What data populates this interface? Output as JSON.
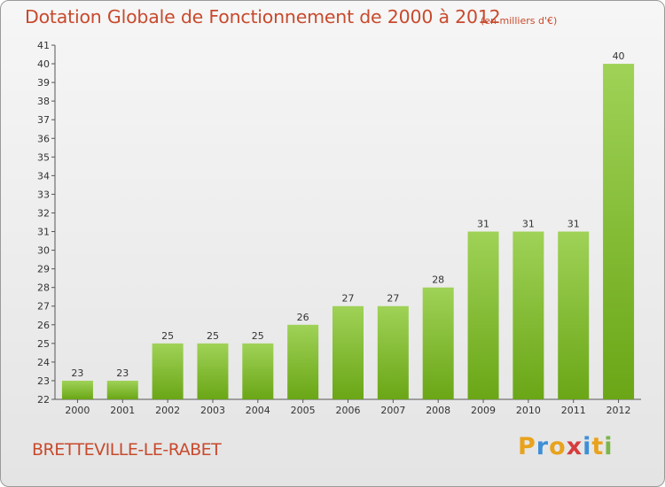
{
  "title": "Dotation Globale de Fonctionnement de 2000 à 2012",
  "unit": "(en milliers d'€)",
  "commune": "BRETTEVILLE-LE-RABET",
  "logo": {
    "letters": [
      "P",
      "r",
      "o",
      "x",
      "i",
      "t",
      "i"
    ],
    "colors": [
      "#e8a21c",
      "#3f8fd6",
      "#e8a21c",
      "#d63c3c",
      "#3f8fd6",
      "#e8a21c",
      "#7ab648"
    ]
  },
  "colors": {
    "bar_top": "#9fd257",
    "bar_bottom": "#6aa616",
    "title": "#c84a2d"
  },
  "chart_data": {
    "type": "bar",
    "categories": [
      "2000",
      "2001",
      "2002",
      "2003",
      "2004",
      "2005",
      "2006",
      "2007",
      "2008",
      "2009",
      "2010",
      "2011",
      "2012"
    ],
    "values": [
      23,
      23,
      25,
      25,
      25,
      26,
      27,
      27,
      28,
      31,
      31,
      31,
      40
    ],
    "ylim": [
      22,
      41
    ],
    "yticks": [
      22,
      23,
      24,
      25,
      26,
      27,
      28,
      29,
      30,
      31,
      32,
      33,
      34,
      35,
      36,
      37,
      38,
      39,
      40,
      41
    ],
    "grid": false
  }
}
